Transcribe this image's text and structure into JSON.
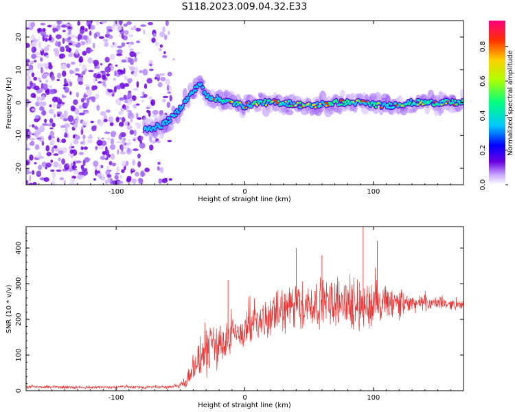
{
  "figure_title": "S118.2023.009.04.32.E33",
  "chart_data": [
    {
      "type": "heatmap",
      "title": "",
      "xlabel": "Height of straight line (km)",
      "ylabel": "Frequency (Hz)",
      "xlim": [
        -170,
        170
      ],
      "ylim": [
        -25,
        25
      ],
      "x_ticks": [
        "-100",
        "0",
        "100"
      ],
      "x_tick_values": [
        -100,
        0,
        100
      ],
      "y_ticks": [
        "-20",
        "-10",
        "0",
        "10",
        "20"
      ],
      "y_tick_values": [
        -20,
        -10,
        0,
        10,
        20
      ],
      "colorbar": {
        "label": "Normalized spectral amplitude",
        "range": [
          0.0,
          0.95
        ],
        "ticks": [
          "0.0",
          "0.2",
          "0.4",
          "0.6",
          "0.8"
        ],
        "tick_values": [
          0.0,
          0.2,
          0.4,
          0.6,
          0.8
        ],
        "colors": [
          "#ffffff",
          "#c8a8ff",
          "#6a00e0",
          "#0000ff",
          "#00c8ff",
          "#00ff80",
          "#b0ff00",
          "#ffd000",
          "#ff3000",
          "#ff0080"
        ]
      },
      "trace_frequency": {
        "x": [
          -75,
          -65,
          -55,
          -45,
          -35,
          -30,
          -20,
          -10,
          0,
          10,
          30,
          50,
          70,
          90,
          110,
          130,
          150,
          170
        ],
        "y": [
          -8,
          -7,
          -4,
          1,
          6,
          2,
          1,
          0,
          -1,
          0,
          0,
          -1,
          0,
          0,
          -1,
          0,
          0,
          0
        ]
      },
      "noise_region": [
        -170,
        -65
      ]
    },
    {
      "type": "line",
      "title": "",
      "xlabel": "Height of straight line (km)",
      "ylabel": "SNR (10 * v/v)",
      "xlim": [
        -170,
        170
      ],
      "ylim": [
        0,
        460
      ],
      "x_ticks": [
        "-100",
        "0",
        "100"
      ],
      "x_tick_values": [
        -100,
        0,
        100
      ],
      "y_ticks": [
        "0",
        "100",
        "200",
        "300",
        "400"
      ],
      "y_tick_values": [
        0,
        100,
        200,
        300,
        400
      ],
      "color": "#ee3333",
      "envelope": {
        "x": [
          -170,
          -60,
          -50,
          -45,
          -40,
          -35,
          -30,
          -20,
          -10,
          0,
          10,
          20,
          30,
          50,
          70,
          90,
          110,
          130,
          150,
          170
        ],
        "mean": [
          10,
          10,
          15,
          30,
          60,
          90,
          110,
          130,
          150,
          170,
          190,
          200,
          230,
          240,
          250,
          240,
          240,
          245,
          245,
          240
        ],
        "spread": [
          5,
          5,
          10,
          30,
          50,
          70,
          80,
          80,
          70,
          60,
          60,
          60,
          80,
          80,
          80,
          90,
          70,
          30,
          20,
          15
        ]
      },
      "peaks": [
        [
          92,
          460
        ],
        [
          103,
          420
        ],
        [
          40,
          400
        ],
        [
          60,
          380
        ],
        [
          -13,
          310
        ]
      ]
    }
  ]
}
